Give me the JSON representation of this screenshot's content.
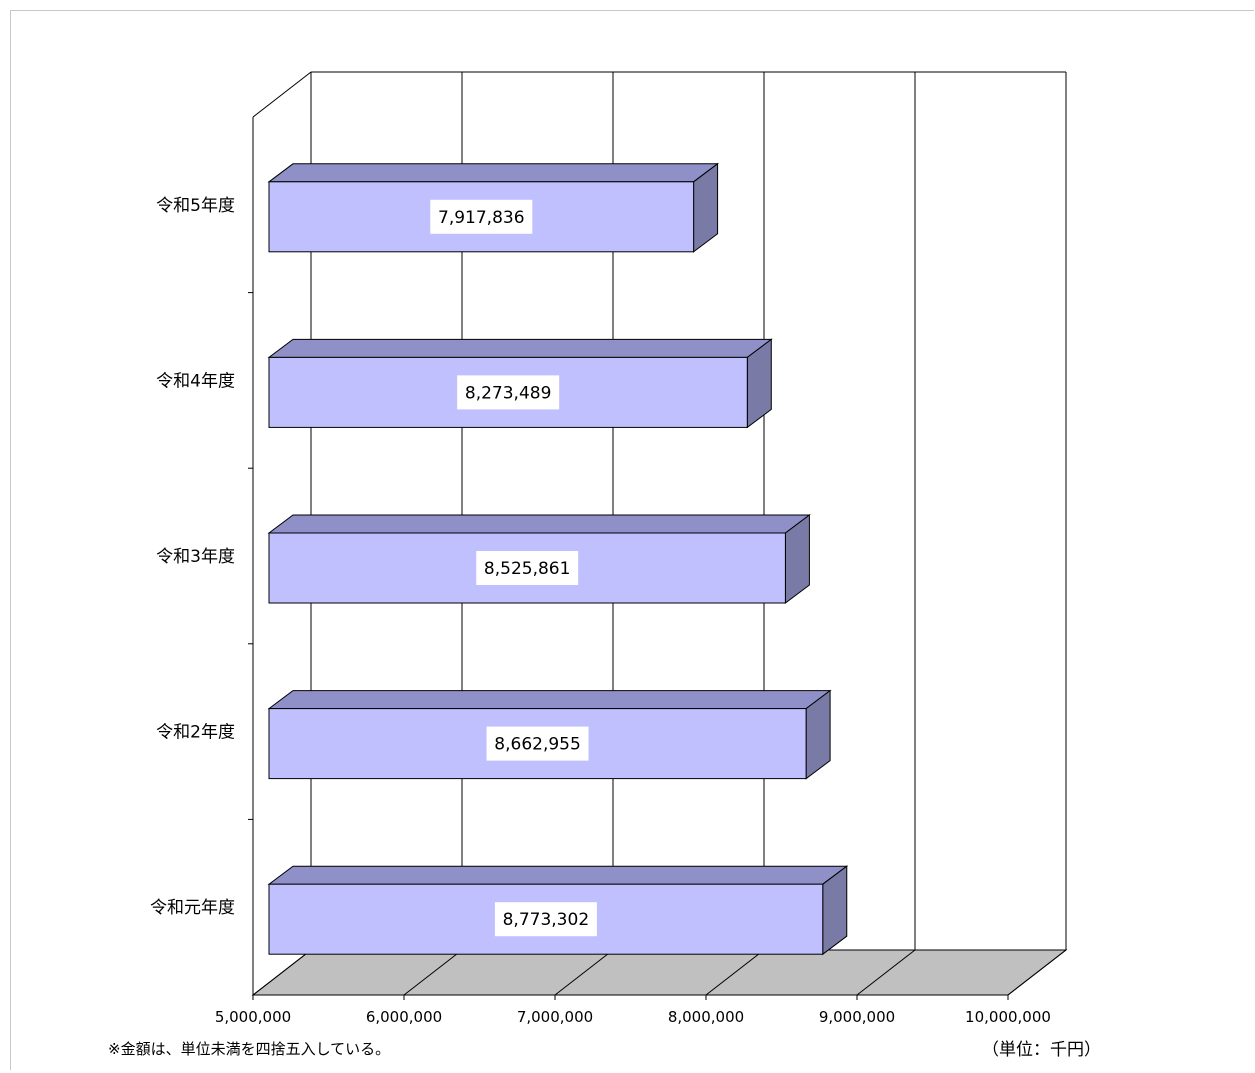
{
  "chart_data": {
    "type": "bar",
    "orientation": "horizontal",
    "style": "3d",
    "categories": [
      "令和5年度",
      "令和4年度",
      "令和3年度",
      "令和2年度",
      "令和元年度"
    ],
    "values": [
      7917836,
      8273489,
      8525861,
      8662955,
      8773302
    ],
    "value_labels": [
      "7,917,836",
      "8,273,489",
      "8,525,861",
      "8,662,955",
      "8,773,302"
    ],
    "xlim": [
      5000000,
      10000000
    ],
    "x_ticks": [
      5000000,
      6000000,
      7000000,
      8000000,
      9000000,
      10000000
    ],
    "x_tick_labels": [
      "5,000,000",
      "6,000,000",
      "7,000,000",
      "8,000,000",
      "9,000,000",
      "10,000,000"
    ],
    "grid": true,
    "colors": {
      "bar_front": "#c0c0ff",
      "bar_top": "#9090c8",
      "bar_side": "#7a7aa6",
      "floor": "#c0c0c0",
      "grid": "#000000"
    }
  },
  "footnote": "※金額は、単位未満を四捨五入している。",
  "unit_label": "（単位：千円）"
}
